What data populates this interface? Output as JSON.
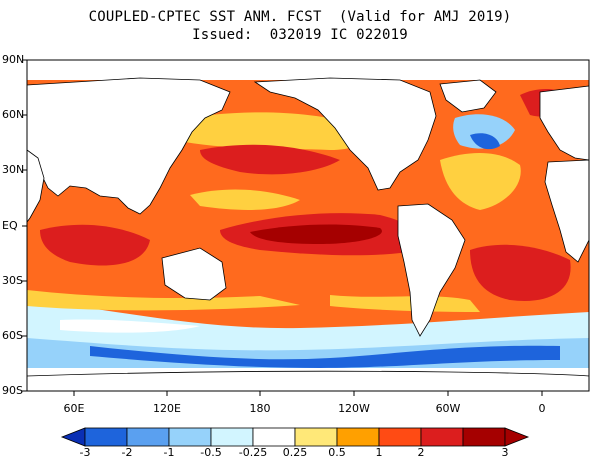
{
  "title": {
    "line1": "COUPLED-CPTEC SST ANM. FCST  (Valid for AMJ 2019)",
    "line2": "Issued:  032019 IC 022019"
  },
  "latitude_labels": [
    "90N",
    "60N",
    "30N",
    "EQ",
    "30S",
    "60S",
    "90S"
  ],
  "longitude_labels": [
    "60E",
    "120E",
    "180",
    "120W",
    "60W",
    "0"
  ],
  "colorbar": {
    "ticks": [
      "-3",
      "-2",
      "-1",
      "-0.5",
      "-0.25",
      "0.25",
      "0.5",
      "1",
      "2",
      "3"
    ],
    "colors": [
      "#0a2fb4",
      "#1e64dc",
      "#5aa0f0",
      "#96d2fa",
      "#d2f5ff",
      "#ffffff",
      "#ffe878",
      "#ffa000",
      "#ff4b14",
      "#dc1e1e",
      "#a50000"
    ]
  },
  "anomaly_colors": {
    "strong_warm": "#dc1e1e",
    "warm": "#ff6a1e",
    "mild_warm": "#ffd040",
    "cool": "#96d2fa",
    "strong_cool": "#1e64dc",
    "land": "#ffffff"
  }
}
